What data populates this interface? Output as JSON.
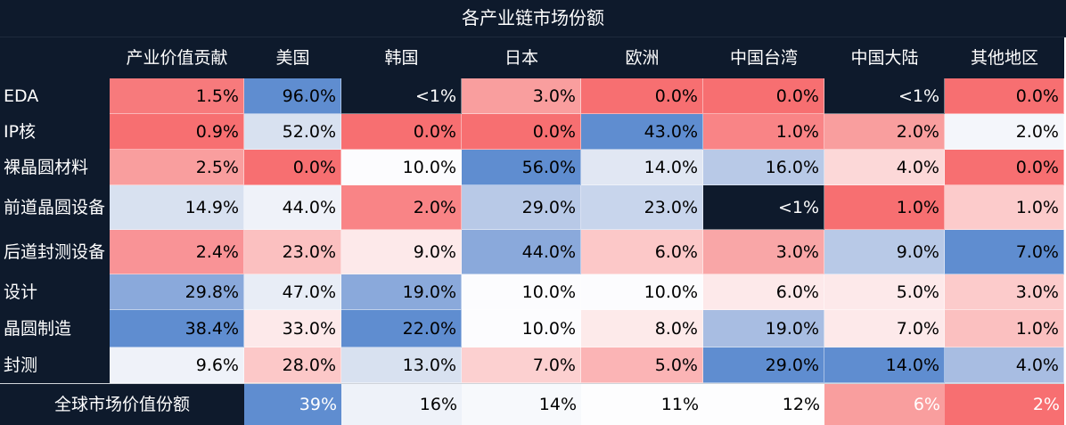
{
  "chart_data": {
    "type": "table",
    "title": "各产业链市场份额",
    "columns": [
      "产业价值贡献",
      "美国",
      "韩国",
      "日本",
      "欧洲",
      "中国台湾",
      "中国大陆",
      "其他地区"
    ],
    "rows": [
      {
        "label": "EDA",
        "values": [
          "1.5%",
          "96.0%",
          "<1%",
          "3.0%",
          "0.0%",
          "0.0%",
          "<1%",
          "0.0%"
        ],
        "colors": [
          "#f77a7c",
          "#5f8dd0",
          "#0e1a2c",
          "#f99e9e",
          "#f76f71",
          "#f76f71",
          "#0e1a2c",
          "#f76f71"
        ],
        "text_colors": [
          "#000000",
          "#000000",
          "#ffffff",
          "#000000",
          "#000000",
          "#000000",
          "#ffffff",
          "#000000"
        ]
      },
      {
        "label": "IP核",
        "values": [
          "0.9%",
          "52.0%",
          "0.0%",
          "0.0%",
          "43.0%",
          "1.0%",
          "2.0%",
          "2.0%"
        ],
        "colors": [
          "#f76f71",
          "#d8e1f0",
          "#f76f71",
          "#f76f71",
          "#5f8dd0",
          "#f98486",
          "#f99e9e",
          "#f4f6fb"
        ],
        "text_colors": [
          "#000000",
          "#000000",
          "#000000",
          "#000000",
          "#000000",
          "#000000",
          "#000000",
          "#000000"
        ]
      },
      {
        "label": "裸晶圆材料",
        "values": [
          "2.5%",
          "0.0%",
          "10.0%",
          "56.0%",
          "14.0%",
          "16.0%",
          "4.0%",
          "0.0%"
        ],
        "colors": [
          "#f99e9e",
          "#f76f71",
          "#fcfcfe",
          "#5f8dd0",
          "#e1e7f3",
          "#b8c9e7",
          "#fcd8d8",
          "#f76f71"
        ],
        "text_colors": [
          "#000000",
          "#000000",
          "#000000",
          "#000000",
          "#000000",
          "#000000",
          "#000000",
          "#000000"
        ]
      },
      {
        "label": "前道晶圆设备",
        "values": [
          "14.9%",
          "44.0%",
          "2.0%",
          "29.0%",
          "23.0%",
          "<1%",
          "1.0%",
          "1.0%"
        ],
        "colors": [
          "#d8e1f0",
          "#eff2f9",
          "#f98486",
          "#b8c9e7",
          "#c8d5ec",
          "#0e1a2c",
          "#f76f71",
          "#fccbcb"
        ],
        "text_colors": [
          "#000000",
          "#000000",
          "#000000",
          "#000000",
          "#000000",
          "#ffffff",
          "#000000",
          "#000000"
        ]
      },
      {
        "label": "后道封测设备",
        "values": [
          "2.4%",
          "23.0%",
          "9.0%",
          "44.0%",
          "6.0%",
          "3.0%",
          "9.0%",
          "7.0%"
        ],
        "colors": [
          "#f99396",
          "#fbc0c0",
          "#fde9ea",
          "#8aa9db",
          "#fcc8c8",
          "#f9a6a7",
          "#b8c9e7",
          "#5f8dd0"
        ],
        "text_colors": [
          "#000000",
          "#000000",
          "#000000",
          "#000000",
          "#000000",
          "#000000",
          "#000000",
          "#000000"
        ]
      },
      {
        "label": "设计",
        "values": [
          "29.8%",
          "47.0%",
          "19.0%",
          "10.0%",
          "10.0%",
          "6.0%",
          "5.0%",
          "3.0%"
        ],
        "colors": [
          "#8aa9db",
          "#e8edf6",
          "#8aa9db",
          "#fcfcfe",
          "#fcfcfe",
          "#fde9ea",
          "#fde9ea",
          "#fccbcb"
        ],
        "text_colors": [
          "#000000",
          "#000000",
          "#000000",
          "#000000",
          "#000000",
          "#000000",
          "#000000",
          "#000000"
        ]
      },
      {
        "label": "晶圆制造",
        "values": [
          "38.4%",
          "33.0%",
          "22.0%",
          "10.0%",
          "8.0%",
          "19.0%",
          "7.0%",
          "1.0%"
        ],
        "colors": [
          "#5f8dd0",
          "#fde9ea",
          "#5f8dd0",
          "#fcfcfe",
          "#fdeaea",
          "#a8bde2",
          "#fde9ea",
          "#fbc0c0"
        ],
        "text_colors": [
          "#000000",
          "#000000",
          "#000000",
          "#000000",
          "#000000",
          "#000000",
          "#000000",
          "#000000"
        ]
      },
      {
        "label": "封测",
        "values": [
          "9.6%",
          "28.0%",
          "13.0%",
          "7.0%",
          "5.0%",
          "29.0%",
          "14.0%",
          "4.0%"
        ],
        "colors": [
          "#eff2f9",
          "#fcc8c8",
          "#d8e1f0",
          "#fcd0d0",
          "#fbb4b5",
          "#5f8dd0",
          "#5f8dd0",
          "#a8bde2"
        ],
        "text_colors": [
          "#000000",
          "#000000",
          "#000000",
          "#000000",
          "#000000",
          "#000000",
          "#000000",
          "#000000"
        ]
      }
    ],
    "footer": {
      "label": "全球市场价值份额",
      "values": [
        "39%",
        "16%",
        "14%",
        "11%",
        "12%",
        "6%",
        "2%"
      ],
      "colors": [
        "#5f8dd0",
        "#eef2f9",
        "#f7f9fc",
        "#fdfdfe",
        "#fdfdfe",
        "#f99e9e",
        "#f76f71"
      ],
      "text_colors": [
        "#ffffff",
        "#000000",
        "#000000",
        "#000000",
        "#000000",
        "#ffffff",
        "#ffffff"
      ]
    }
  },
  "colors": {
    "header_bg": "#0e1a2c",
    "header_text": "#ffffff",
    "high_blue": "#5f8dd0",
    "low_red": "#f76f71"
  }
}
